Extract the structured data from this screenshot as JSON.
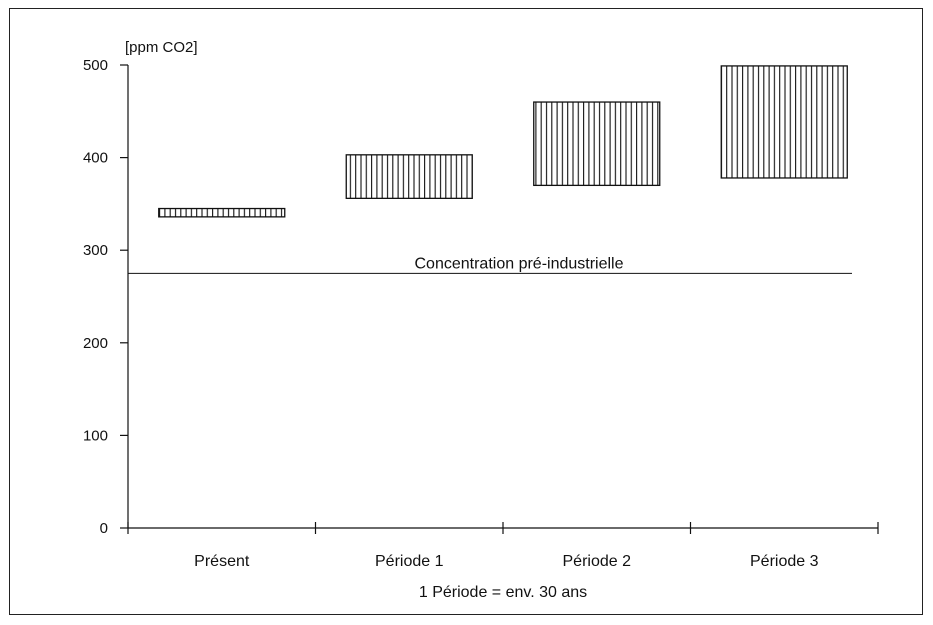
{
  "chart_data": {
    "type": "bar",
    "chart_subtype": "floating-range",
    "ylabel": "[ppm CO2]",
    "xlabel": "1 Période = env. 30 ans",
    "ylim": [
      0,
      500
    ],
    "yticks": [
      0,
      100,
      200,
      300,
      400,
      500
    ],
    "categories": [
      "Présent",
      "Période 1",
      "Période 2",
      "Période 3"
    ],
    "ranges": [
      {
        "low": 336,
        "high": 345
      },
      {
        "low": 356,
        "high": 403
      },
      {
        "low": 370,
        "high": 460
      },
      {
        "low": 378,
        "high": 499
      }
    ],
    "reference_line": {
      "value": 275,
      "label": "Concentration pré-industrielle"
    },
    "bar_fill": "vertical-hatch",
    "colors": {
      "line": "#111111",
      "background": "#ffffff"
    },
    "grid": false,
    "legend": "none"
  }
}
